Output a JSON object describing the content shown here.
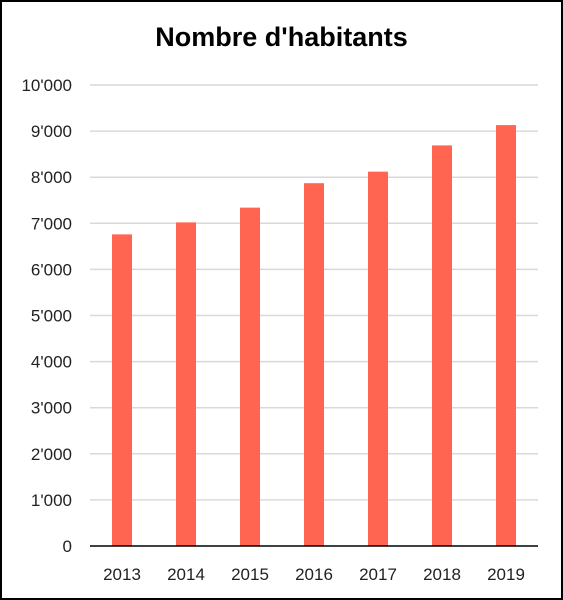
{
  "chart_data": {
    "type": "bar",
    "title": "Nombre d'habitants",
    "xlabel": "",
    "ylabel": "",
    "categories": [
      "2013",
      "2014",
      "2015",
      "2016",
      "2017",
      "2018",
      "2019"
    ],
    "values": [
      6760,
      7020,
      7340,
      7870,
      8120,
      8690,
      9130
    ],
    "ylim": [
      0,
      10000
    ],
    "yticks": [
      0,
      1000,
      2000,
      3000,
      4000,
      5000,
      6000,
      7000,
      8000,
      9000,
      10000
    ],
    "ytick_labels": [
      "0",
      "1'000",
      "2'000",
      "3'000",
      "4'000",
      "5'000",
      "6'000",
      "7'000",
      "8'000",
      "9'000",
      "10'000"
    ],
    "grid": true,
    "legend": "none",
    "bar_color": "#ff6550",
    "grid_color": "#d9d9d9",
    "axis_color": "#000000"
  }
}
